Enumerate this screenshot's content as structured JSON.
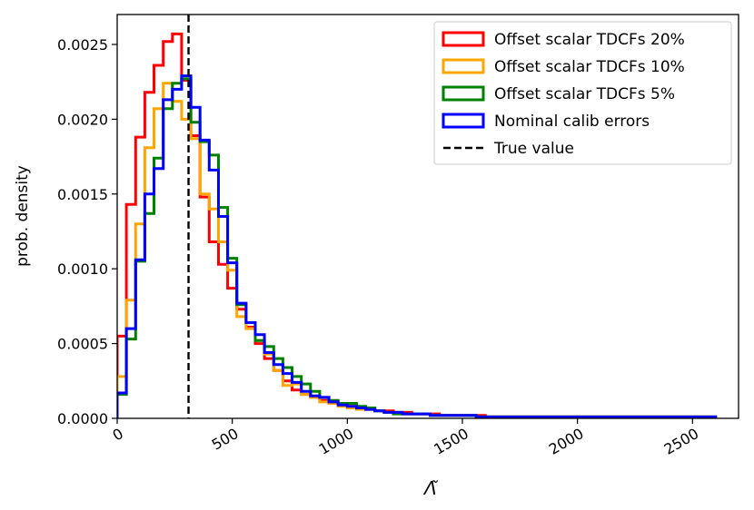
{
  "chart_data": {
    "type": "step-histogram",
    "title": "",
    "xlabel": "Λ̃",
    "ylabel": "prob. density",
    "xlim": [
      0,
      2700
    ],
    "ylim": [
      0,
      0.0027
    ],
    "xticks": [
      "0",
      "500",
      "1000",
      "1500",
      "2000",
      "2500"
    ],
    "yticks": [
      "0.0000",
      "0.0005",
      "0.0010",
      "0.0015",
      "0.0020",
      "0.0025"
    ],
    "grid": false,
    "legend_position": "top-right",
    "true_value": 310,
    "bin_width": 40,
    "series": [
      {
        "name": "Offset scalar TDCFs 20%",
        "color": "#ff0000",
        "values": [
          0.00055,
          0.00143,
          0.00188,
          0.00218,
          0.00236,
          0.00252,
          0.00257,
          0.00226,
          0.00189,
          0.00148,
          0.00118,
          0.00103,
          0.00087,
          0.00073,
          0.00061,
          0.0005,
          0.0004,
          0.00032,
          0.00025,
          0.00019,
          0.00016,
          0.00014,
          0.00012,
          0.0001,
          9e-05,
          8e-05,
          7e-05,
          6e-05,
          5e-05,
          5e-05,
          4e-05,
          4e-05,
          3e-05,
          3e-05,
          3e-05,
          2e-05,
          2e-05,
          2e-05,
          2e-05,
          2e-05,
          1e-05,
          1e-05,
          1e-05,
          1e-05,
          1e-05,
          1e-05,
          1e-05,
          1e-05,
          1e-05,
          1e-05,
          1e-05,
          1e-05,
          1e-05,
          1e-05,
          1e-05,
          1e-05,
          1e-05,
          1e-05,
          1e-05,
          1e-05,
          1e-05,
          1e-05,
          1e-05,
          1e-05,
          1e-05
        ]
      },
      {
        "name": "Offset scalar TDCFs 10%",
        "color": "#ffa500",
        "values": [
          0.00028,
          0.00079,
          0.0013,
          0.00181,
          0.00207,
          0.00224,
          0.00212,
          0.002,
          0.00187,
          0.0015,
          0.0014,
          0.00118,
          0.00099,
          0.00068,
          0.0006,
          0.00052,
          0.00043,
          0.00032,
          0.00022,
          0.00023,
          0.00016,
          0.00014,
          0.00011,
          0.0001,
          8e-05,
          7e-05,
          6e-05,
          6e-05,
          5e-05,
          4e-05,
          4e-05,
          3e-05,
          3e-05,
          3e-05,
          2e-05,
          2e-05,
          2e-05,
          2e-05,
          2e-05,
          1e-05,
          1e-05,
          1e-05,
          1e-05,
          1e-05,
          1e-05,
          1e-05,
          1e-05,
          1e-05,
          1e-05,
          1e-05,
          1e-05,
          1e-05,
          1e-05,
          1e-05,
          1e-05,
          1e-05,
          1e-05,
          1e-05,
          1e-05,
          1e-05,
          1e-05,
          1e-05,
          1e-05,
          1e-05,
          1e-05
        ]
      },
      {
        "name": "Offset scalar TDCFs 5%",
        "color": "#008000",
        "values": [
          0.00016,
          0.00053,
          0.00105,
          0.00137,
          0.00174,
          0.00207,
          0.00224,
          0.00227,
          0.00198,
          0.00185,
          0.00176,
          0.00141,
          0.00107,
          0.00076,
          0.00064,
          0.00052,
          0.00048,
          0.0004,
          0.00034,
          0.00028,
          0.00023,
          0.00018,
          0.00014,
          0.00012,
          0.0001,
          0.0001,
          8e-05,
          7e-05,
          5e-05,
          4e-05,
          3e-05,
          3e-05,
          3e-05,
          3e-05,
          2e-05,
          2e-05,
          2e-05,
          2e-05,
          2e-05,
          1e-05,
          1e-05,
          1e-05,
          1e-05,
          1e-05,
          1e-05,
          1e-05,
          1e-05,
          1e-05,
          1e-05,
          1e-05,
          1e-05,
          1e-05,
          1e-05,
          1e-05,
          1e-05,
          1e-05,
          1e-05,
          1e-05,
          1e-05,
          1e-05,
          1e-05,
          1e-05,
          1e-05,
          1e-05,
          1e-05
        ]
      },
      {
        "name": "Nominal calib errors",
        "color": "#0000ff",
        "values": [
          0.00017,
          0.0006,
          0.00106,
          0.0015,
          0.00167,
          0.00213,
          0.0022,
          0.00229,
          0.00208,
          0.00186,
          0.00166,
          0.00135,
          0.00104,
          0.00077,
          0.00064,
          0.00056,
          0.00044,
          0.00036,
          0.0003,
          0.00024,
          0.00018,
          0.00015,
          0.00014,
          0.00011,
          9e-05,
          8e-05,
          7e-05,
          6e-05,
          5e-05,
          4e-05,
          4e-05,
          3e-05,
          3e-05,
          3e-05,
          2e-05,
          2e-05,
          2e-05,
          2e-05,
          2e-05,
          1e-05,
          1e-05,
          1e-05,
          1e-05,
          1e-05,
          1e-05,
          1e-05,
          1e-05,
          1e-05,
          1e-05,
          1e-05,
          1e-05,
          1e-05,
          1e-05,
          1e-05,
          1e-05,
          1e-05,
          1e-05,
          1e-05,
          1e-05,
          1e-05,
          1e-05,
          1e-05,
          1e-05,
          1e-05,
          1e-05
        ]
      }
    ],
    "reference_line": {
      "name": "True value",
      "color": "#000000",
      "style": "dashed"
    }
  }
}
